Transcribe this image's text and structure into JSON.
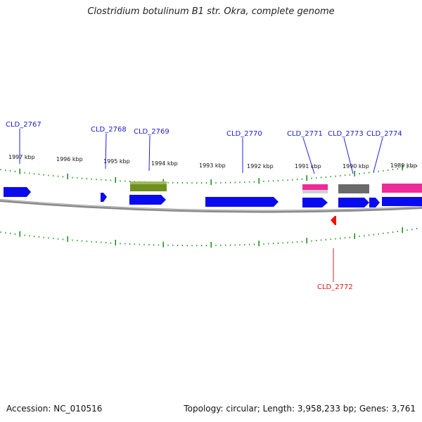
{
  "title": "Clostridium botulinum B1 str. Okra, complete genome",
  "footer": {
    "accession": "Accession: NC_010516",
    "summary": "Topology: circular; Length: 3,958,233 bp; Genes: 3,761"
  },
  "colors": {
    "forward_gene": "#0a0af0",
    "reverse_gene": "#f01010",
    "tick": "#118811",
    "backbone": "#808080",
    "olive_feature": "#6f8f1f",
    "pink_feature": "#ee2a9a",
    "gray_feature": "#6a6a6a"
  },
  "kbp_labels": [
    "1997 kbp",
    "1996 kbp",
    "1995 kbp",
    "1994 kbp",
    "1993 kbp",
    "1992 kbp",
    "1991 kbp",
    "1990 kbp",
    "1989 kbp"
  ],
  "genes": [
    {
      "label": "CLD_2767",
      "strand": "forward"
    },
    {
      "label": "CLD_2768",
      "strand": "forward"
    },
    {
      "label": "CLD_2769",
      "strand": "forward"
    },
    {
      "label": "CLD_2770",
      "strand": "forward"
    },
    {
      "label": "CLD_2771",
      "strand": "forward"
    },
    {
      "label": "CLD_2772",
      "strand": "reverse"
    },
    {
      "label": "CLD_2773",
      "strand": "forward"
    },
    {
      "label": "CLD_2774",
      "strand": "forward"
    }
  ]
}
